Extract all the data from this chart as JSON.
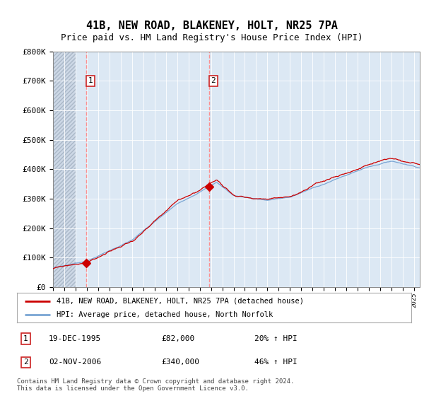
{
  "title": "41B, NEW ROAD, BLAKENEY, HOLT, NR25 7PA",
  "subtitle": "Price paid vs. HM Land Registry's House Price Index (HPI)",
  "ylim": [
    0,
    800000
  ],
  "yticks": [
    0,
    100000,
    200000,
    300000,
    400000,
    500000,
    600000,
    700000,
    800000
  ],
  "ytick_labels": [
    "£0",
    "£100K",
    "£200K",
    "£300K",
    "£400K",
    "£500K",
    "£600K",
    "£700K",
    "£800K"
  ],
  "sale1_date": 1995.97,
  "sale1_price": 82000,
  "sale2_date": 2006.84,
  "sale2_price": 340000,
  "hpi_line_color": "#7aa6d4",
  "price_line_color": "#cc0000",
  "marker_color": "#cc0000",
  "dashed_line_color": "#ff8888",
  "legend_line1": "41B, NEW ROAD, BLAKENEY, HOLT, NR25 7PA (detached house)",
  "legend_line2": "HPI: Average price, detached house, North Norfolk",
  "footer": "Contains HM Land Registry data © Crown copyright and database right 2024.\nThis data is licensed under the Open Government Licence v3.0.",
  "plot_bg": "#dce8f4",
  "hatch_bg": "#cdd8e6",
  "title_fontsize": 11,
  "subtitle_fontsize": 9,
  "xmin": 1993.0,
  "xmax": 2025.5,
  "hatch_end": 1995.0,
  "num_points": 390
}
